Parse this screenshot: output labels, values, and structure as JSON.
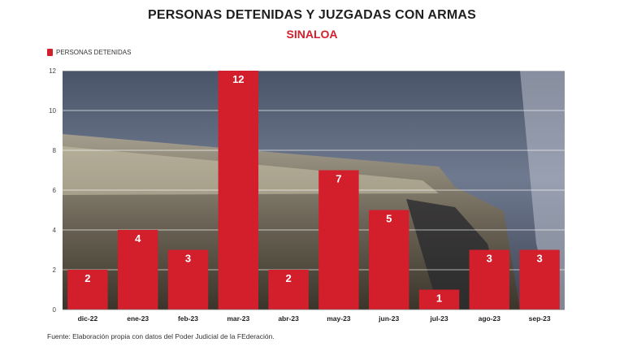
{
  "header": {
    "title": "PERSONAS DETENIDAS Y JUZGADAS CON ARMAS",
    "subtitle": "SINALOA"
  },
  "footer": {
    "source": "Fuente: Elaboración propia con datos del Poder Judicial de la FEderación."
  },
  "colors": {
    "bar": "#d21f2b",
    "subtitle": "#d21f2b",
    "grid": "#ffffff"
  },
  "chart_data": {
    "type": "bar",
    "categories": [
      "dic-22",
      "ene-23",
      "feb-23",
      "mar-23",
      "abr-23",
      "may-23",
      "jun-23",
      "jul-23",
      "ago-23",
      "sep-23"
    ],
    "series": [
      {
        "name": "PERSONAS DETENIDAS",
        "values": [
          2,
          4,
          3,
          12,
          2,
          7,
          5,
          1,
          3,
          3
        ]
      }
    ],
    "ylim": [
      0,
      12
    ],
    "yticks": [
      0,
      2,
      4,
      6,
      8,
      10,
      12
    ],
    "legend": "top-left",
    "grid": true,
    "data_labels": true
  }
}
